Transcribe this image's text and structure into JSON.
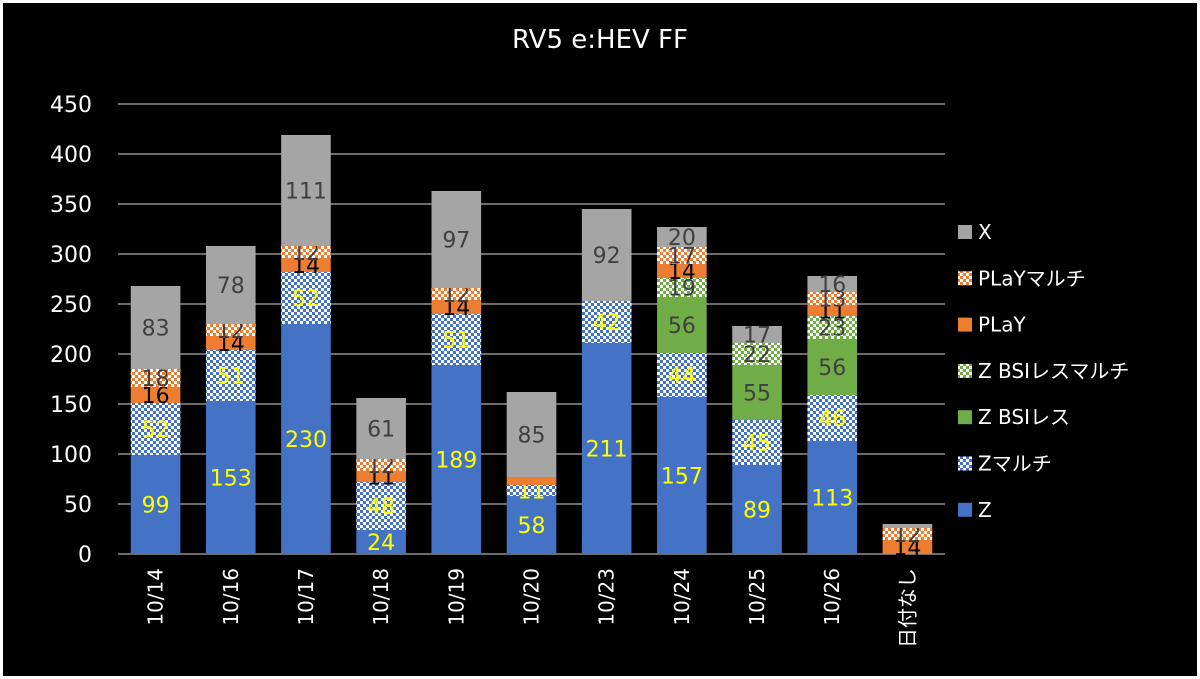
{
  "chart_data": {
    "type": "bar",
    "stacked": true,
    "title": "RV5 e:HEV FF",
    "categories": [
      "10/14",
      "10/16",
      "10/17",
      "10/18",
      "10/19",
      "10/20",
      "10/23",
      "10/24",
      "10/25",
      "10/26",
      "日付なし"
    ],
    "ylim": [
      0,
      450
    ],
    "yticks": [
      "0",
      "50",
      "100",
      "150",
      "200",
      "250",
      "300",
      "350",
      "400",
      "450"
    ],
    "grid": true,
    "legend_position": "right",
    "series": [
      {
        "name": "Z",
        "color": "#4472c4",
        "pattern": "solid",
        "label_color": "#ffff00",
        "values": [
          99,
          153,
          230,
          24,
          189,
          58,
          211,
          157,
          89,
          113,
          0
        ]
      },
      {
        "name": "Zマルチ",
        "color": "#4472c4",
        "pattern": "dots",
        "label_color": "#ffff00",
        "values": [
          52,
          51,
          52,
          48,
          51,
          11,
          42,
          44,
          45,
          46,
          0
        ]
      },
      {
        "name": "Z BSIレス",
        "color": "#70ad47",
        "pattern": "solid",
        "label_color": "#404040",
        "values": [
          0,
          0,
          0,
          0,
          0,
          0,
          0,
          56,
          55,
          56,
          0
        ]
      },
      {
        "name": "Z BSIレスマルチ",
        "color": "#70ad47",
        "pattern": "dots",
        "label_color": "#404040",
        "values": [
          0,
          0,
          0,
          0,
          0,
          0,
          0,
          19,
          22,
          23,
          0
        ]
      },
      {
        "name": "PLaY",
        "color": "#ed7d31",
        "pattern": "solid",
        "label_color": "#000000",
        "values": [
          16,
          14,
          14,
          11,
          14,
          8,
          0,
          14,
          0,
          11,
          14
        ]
      },
      {
        "name": "PLaYマルチ",
        "color": "#ed7d31",
        "pattern": "dots",
        "label_color": "#404040",
        "values": [
          18,
          12,
          12,
          12,
          12,
          0,
          0,
          17,
          0,
          13,
          12
        ]
      },
      {
        "name": "X",
        "color": "#a5a5a5",
        "pattern": "solid",
        "label_color": "#404040",
        "values": [
          83,
          78,
          111,
          61,
          97,
          85,
          92,
          20,
          17,
          16,
          4
        ]
      }
    ],
    "data_labels": [
      [
        "99",
        "153",
        "230",
        "24",
        "189",
        "58",
        "211",
        "157",
        "89",
        "113",
        ""
      ],
      [
        "52",
        "51",
        "52",
        "48",
        "51",
        "11",
        "42",
        "44",
        "45",
        "46",
        ""
      ],
      [
        "",
        "",
        "",
        "",
        "",
        "",
        "",
        "56",
        "55",
        "56",
        ""
      ],
      [
        "",
        "",
        "",
        "",
        "",
        "",
        "",
        "19",
        "22",
        "23",
        ""
      ],
      [
        "16",
        "14",
        "14",
        "11",
        "14",
        "",
        "",
        "14",
        "",
        "11",
        "14"
      ],
      [
        "18",
        "12",
        "12",
        "12",
        "12",
        "",
        "",
        "17",
        "",
        "13",
        "12"
      ],
      [
        "83",
        "78",
        "111",
        "61",
        "97",
        "85",
        "92",
        "20",
        "17",
        "16",
        ""
      ]
    ],
    "legend_order": [
      "X",
      "PLaYマルチ",
      "PLaY",
      "Z BSIレスマルチ",
      "Z BSIレス",
      "Zマルチ",
      "Z"
    ]
  }
}
